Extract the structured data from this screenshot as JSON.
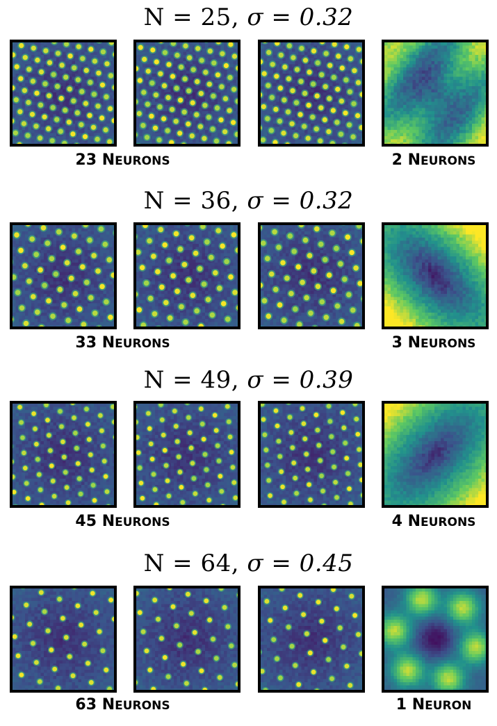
{
  "rows": [
    {
      "title_n": "N = 25,",
      "title_sigma": "σ = 0.32",
      "left_caption": {
        "num": "23",
        "n": "N",
        "rest": "EURONS"
      },
      "right_caption": {
        "num": "2",
        "n": "N",
        "rest": "EURONS"
      }
    },
    {
      "title_n": "N = 36,",
      "title_sigma": "σ = 0.32",
      "left_caption": {
        "num": "33",
        "n": "N",
        "rest": "EURONS"
      },
      "right_caption": {
        "num": "3",
        "n": "N",
        "rest": "EURONS"
      }
    },
    {
      "title_n": "N = 49,",
      "title_sigma": "σ = 0.39",
      "left_caption": {
        "num": "45",
        "n": "N",
        "rest": "EURONS"
      },
      "right_caption": {
        "num": "4",
        "n": "N",
        "rest": "EURONS"
      }
    },
    {
      "title_n": "N = 64,",
      "title_sigma": "σ = 0.45",
      "left_caption": {
        "num": "63",
        "n": "N",
        "rest": "EURONS"
      },
      "right_caption": {
        "num": "1",
        "n": "N",
        "rest": "EURON"
      }
    }
  ],
  "colors": {
    "viridis_dark": "#440154",
    "viridis_blue": "#31688e",
    "viridis_green": "#35b779",
    "viridis_yellow": "#fde725"
  }
}
